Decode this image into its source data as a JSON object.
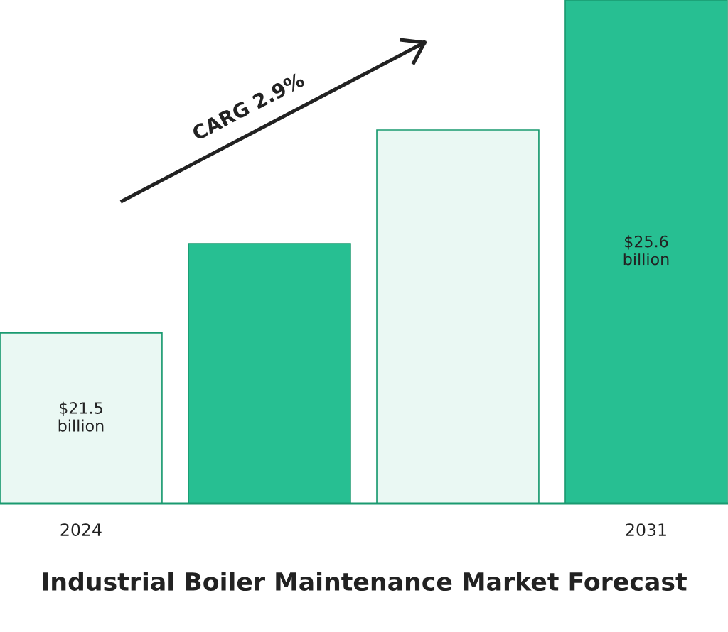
{
  "chart_data": {
    "type": "bar",
    "title": "Industrial Boiler Maintenance Market Forecast",
    "categories": [
      "2024",
      null,
      null,
      "2031"
    ],
    "values": [
      21500000000,
      22600000000,
      24000000000,
      25600000000
    ],
    "ylim": [
      19400000000,
      25600000000
    ],
    "colors": [
      "#eaf8f3",
      "#27bf92",
      "#eaf8f3",
      "#27bf92"
    ],
    "value_labels": [
      "$21.5\nbillion",
      null,
      null,
      "$25.6\nbillion"
    ],
    "annotations": [
      "CARG 2.9%"
    ]
  }
}
